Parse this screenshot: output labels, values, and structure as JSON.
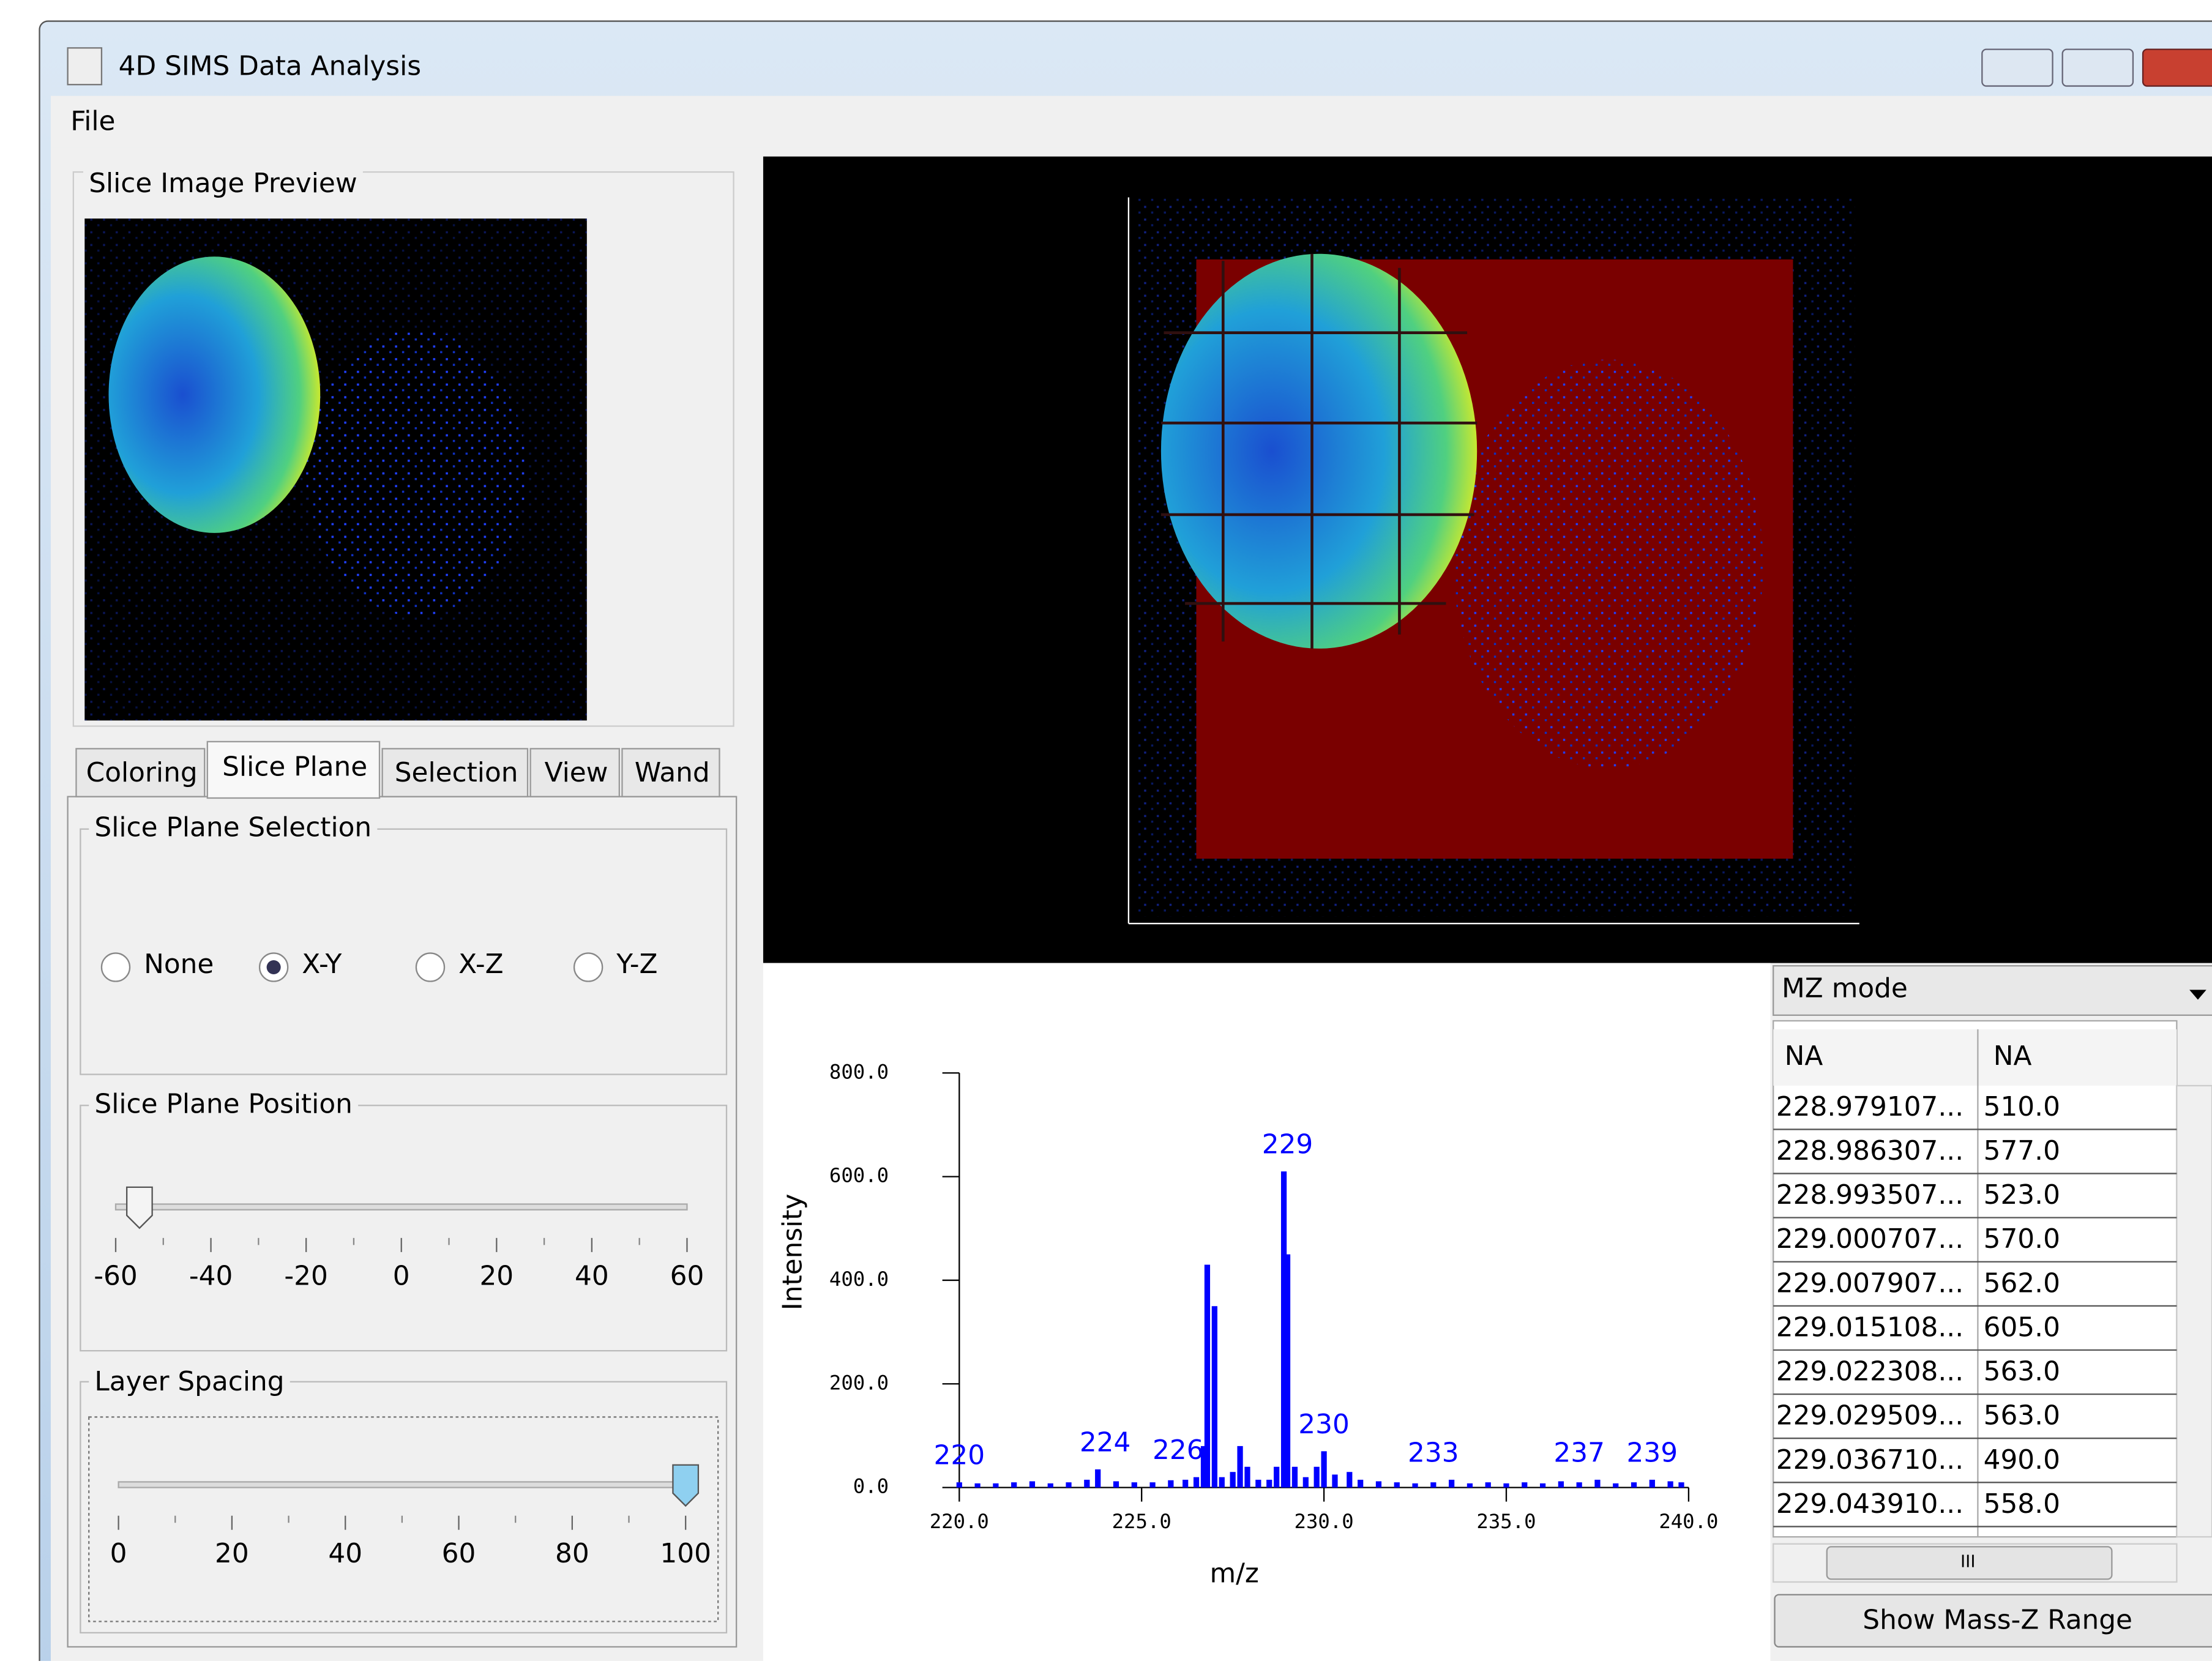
{
  "window": {
    "title": "4D SIMS Data Analysis"
  },
  "menu": [
    "File"
  ],
  "preview": {
    "title": "Slice Image Preview"
  },
  "tabs": [
    "Coloring",
    "Slice Plane",
    "Selection",
    "View",
    "Wand"
  ],
  "slice_plane_selection": {
    "title": "Slice Plane Selection",
    "options": [
      "None",
      "X-Y",
      "X-Z",
      "Y-Z"
    ]
  },
  "slice_plane_position": {
    "title": "Slice Plane Position",
    "min": -60,
    "max": 60,
    "ticks": [
      -60,
      -40,
      -20,
      0,
      20,
      40,
      60
    ],
    "value": -55
  },
  "layer_spacing": {
    "title": "Layer Spacing",
    "min": 0,
    "max": 100,
    "ticks": [
      0,
      20,
      40,
      60,
      80,
      100
    ],
    "value": 100
  },
  "chart_data": {
    "type": "bar",
    "xlabel": "m/z",
    "ylabel": "Intensity",
    "color": "#0000ff",
    "xlim": [
      220,
      240
    ],
    "ylim": [
      0,
      800
    ],
    "xticks": [
      {
        "value": 220,
        "label": "220.0"
      },
      {
        "value": 225,
        "label": "225.0"
      },
      {
        "value": 230,
        "label": "230.0"
      },
      {
        "value": 235,
        "label": "235.0"
      },
      {
        "value": 240,
        "label": "240.0"
      }
    ],
    "yticks": [
      {
        "value": 0,
        "label": "0.0"
      },
      {
        "value": 200,
        "label": "200.0"
      },
      {
        "value": 400,
        "label": "400.0"
      },
      {
        "value": 600,
        "label": "600.0"
      },
      {
        "value": 800,
        "label": "800.0"
      }
    ],
    "x": [
      220.0,
      220.5,
      221.0,
      221.5,
      222.0,
      222.5,
      223.0,
      223.5,
      223.8,
      224.3,
      224.8,
      225.3,
      225.8,
      226.2,
      226.5,
      226.7,
      226.8,
      227.0,
      227.2,
      227.5,
      227.7,
      227.9,
      228.2,
      228.5,
      228.7,
      228.9,
      229.0,
      229.2,
      229.5,
      229.8,
      230.0,
      230.3,
      230.7,
      231.0,
      231.5,
      232.0,
      232.5,
      233.0,
      233.5,
      234.0,
      234.5,
      235.0,
      235.5,
      236.0,
      236.5,
      237.0,
      237.5,
      238.0,
      238.5,
      239.0,
      239.5,
      239.8
    ],
    "values": [
      10,
      8,
      8,
      10,
      12,
      8,
      10,
      15,
      35,
      12,
      10,
      10,
      14,
      15,
      20,
      80,
      430,
      350,
      20,
      30,
      80,
      40,
      15,
      15,
      40,
      610,
      450,
      40,
      20,
      40,
      70,
      25,
      30,
      15,
      12,
      10,
      8,
      10,
      15,
      8,
      10,
      8,
      10,
      8,
      12,
      10,
      15,
      8,
      10,
      15,
      12,
      10
    ],
    "peak_labels": [
      220,
      224,
      226,
      229,
      230,
      233,
      237,
      239
    ]
  },
  "table": {
    "dropdown": "MZ mode",
    "columns": [
      "NA",
      "NA"
    ],
    "rows": [
      [
        "228.979107...",
        "510.0"
      ],
      [
        "228.986307...",
        "577.0"
      ],
      [
        "228.993507...",
        "523.0"
      ],
      [
        "229.000707...",
        "570.0"
      ],
      [
        "229.007907...",
        "562.0"
      ],
      [
        "229.015108...",
        "605.0"
      ],
      [
        "229.022308...",
        "563.0"
      ],
      [
        "229.029509...",
        "563.0"
      ],
      [
        "229.036710...",
        "490.0"
      ],
      [
        "229.043910...",
        "558.0"
      ]
    ],
    "scroll_label": "III"
  },
  "button": "Show Mass-Z Range"
}
